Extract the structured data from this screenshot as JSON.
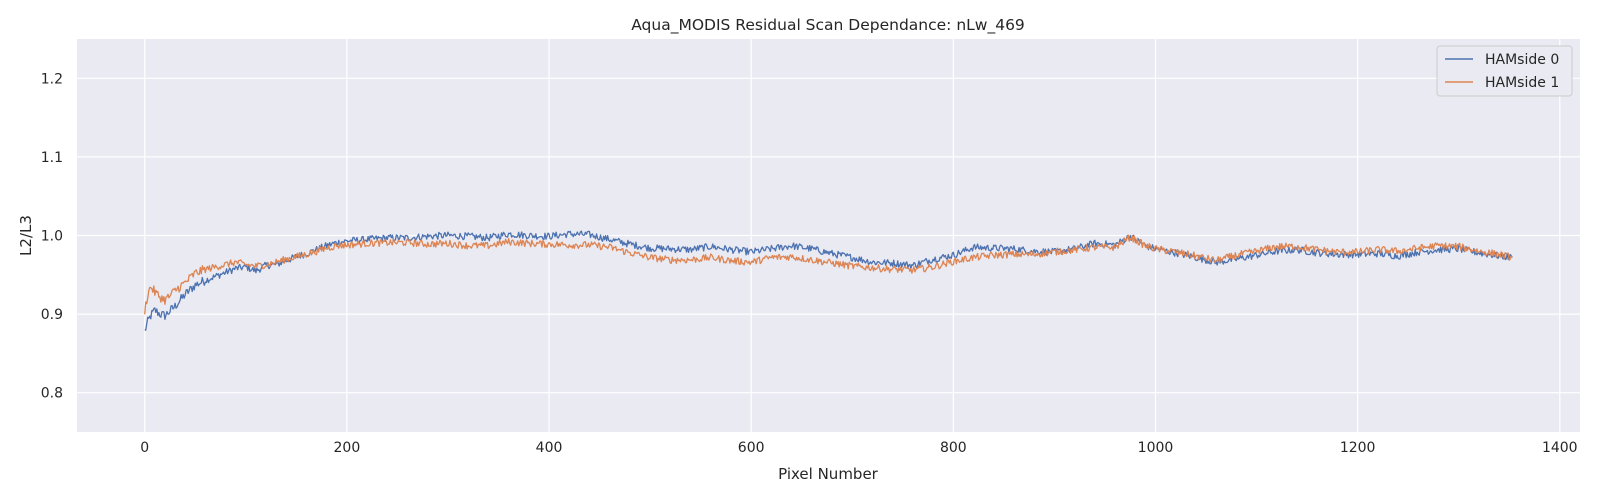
{
  "chart_data": {
    "type": "line",
    "title": "Aqua_MODIS Residual Scan Dependance: nLw_469",
    "xlabel": "Pixel Number",
    "ylabel": "L2/L3",
    "xlim": [
      -67,
      1420
    ],
    "ylim": [
      0.75,
      1.25
    ],
    "x_ticks": [
      0,
      200,
      400,
      600,
      800,
      1000,
      1200,
      1400
    ],
    "y_ticks": [
      0.8,
      0.9,
      1.0,
      1.1,
      1.2
    ],
    "x_tick_labels": [
      "0",
      "200",
      "400",
      "600",
      "800",
      "1000",
      "1200",
      "1400"
    ],
    "y_tick_labels": [
      "0.8",
      "0.9",
      "1.0",
      "1.1",
      "1.2"
    ],
    "grid": true,
    "legend_position": "top-right",
    "background": "#eaeaf2",
    "series": [
      {
        "name": "HAMside 0",
        "color": "#4c72b0",
        "x": [
          0,
          3,
          6,
          10,
          15,
          20,
          25,
          30,
          40,
          50,
          60,
          70,
          80,
          90,
          100,
          110,
          120,
          130,
          140,
          150,
          160,
          170,
          180,
          190,
          200,
          220,
          240,
          260,
          280,
          300,
          320,
          340,
          360,
          380,
          400,
          420,
          440,
          460,
          480,
          500,
          520,
          540,
          560,
          580,
          600,
          620,
          640,
          660,
          680,
          700,
          720,
          740,
          760,
          780,
          800,
          820,
          840,
          860,
          880,
          900,
          920,
          940,
          960,
          975,
          990,
          1000,
          1020,
          1040,
          1060,
          1080,
          1100,
          1120,
          1140,
          1160,
          1180,
          1200,
          1220,
          1240,
          1260,
          1280,
          1300,
          1320,
          1340,
          1353
        ],
        "values": [
          0.878,
          0.89,
          0.898,
          0.905,
          0.9,
          0.898,
          0.904,
          0.91,
          0.925,
          0.937,
          0.943,
          0.948,
          0.953,
          0.958,
          0.96,
          0.955,
          0.962,
          0.963,
          0.968,
          0.973,
          0.977,
          0.982,
          0.987,
          0.991,
          0.993,
          0.995,
          0.997,
          0.997,
          0.999,
          1.0,
          0.999,
          0.997,
          1.002,
          1.0,
          0.999,
          1.002,
          1.001,
          0.995,
          0.989,
          0.984,
          0.983,
          0.982,
          0.986,
          0.982,
          0.979,
          0.983,
          0.987,
          0.983,
          0.977,
          0.972,
          0.966,
          0.965,
          0.962,
          0.97,
          0.975,
          0.985,
          0.984,
          0.983,
          0.98,
          0.979,
          0.983,
          0.99,
          0.988,
          0.999,
          0.987,
          0.983,
          0.978,
          0.972,
          0.966,
          0.97,
          0.975,
          0.98,
          0.982,
          0.978,
          0.976,
          0.976,
          0.977,
          0.974,
          0.979,
          0.982,
          0.983,
          0.978,
          0.974,
          0.972
        ]
      },
      {
        "name": "HAMside 1",
        "color": "#dd8452",
        "x": [
          0,
          3,
          6,
          10,
          15,
          20,
          25,
          30,
          40,
          50,
          60,
          70,
          80,
          90,
          100,
          110,
          120,
          130,
          140,
          150,
          160,
          170,
          180,
          190,
          200,
          220,
          240,
          260,
          280,
          300,
          320,
          340,
          360,
          380,
          400,
          420,
          440,
          460,
          480,
          500,
          520,
          540,
          560,
          580,
          600,
          620,
          640,
          660,
          680,
          700,
          720,
          740,
          760,
          780,
          800,
          820,
          840,
          860,
          880,
          900,
          920,
          940,
          960,
          975,
          990,
          1000,
          1020,
          1040,
          1060,
          1080,
          1100,
          1120,
          1140,
          1160,
          1180,
          1200,
          1220,
          1240,
          1260,
          1280,
          1300,
          1320,
          1340,
          1353
        ],
        "values": [
          0.905,
          0.925,
          0.935,
          0.928,
          0.922,
          0.918,
          0.923,
          0.93,
          0.94,
          0.952,
          0.957,
          0.96,
          0.963,
          0.966,
          0.963,
          0.961,
          0.963,
          0.966,
          0.97,
          0.973,
          0.976,
          0.98,
          0.984,
          0.987,
          0.988,
          0.99,
          0.991,
          0.991,
          0.989,
          0.99,
          0.987,
          0.987,
          0.992,
          0.99,
          0.989,
          0.988,
          0.988,
          0.985,
          0.978,
          0.972,
          0.969,
          0.969,
          0.972,
          0.968,
          0.966,
          0.972,
          0.973,
          0.969,
          0.965,
          0.961,
          0.959,
          0.957,
          0.956,
          0.96,
          0.967,
          0.972,
          0.975,
          0.976,
          0.976,
          0.979,
          0.982,
          0.985,
          0.985,
          0.998,
          0.987,
          0.983,
          0.979,
          0.974,
          0.968,
          0.975,
          0.98,
          0.986,
          0.986,
          0.982,
          0.979,
          0.979,
          0.982,
          0.98,
          0.984,
          0.987,
          0.986,
          0.98,
          0.976,
          0.972
        ]
      }
    ]
  }
}
